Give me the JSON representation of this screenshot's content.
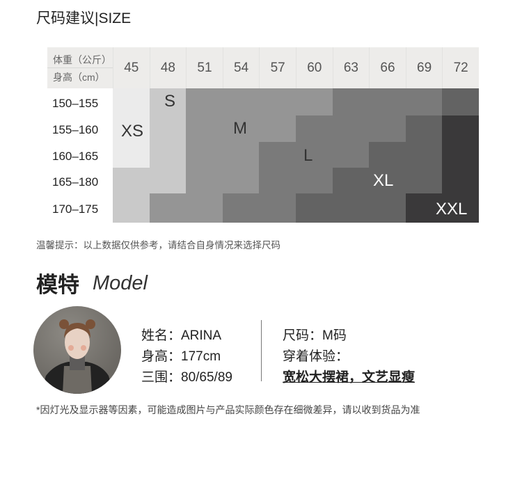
{
  "size_title": "尺码建议|SIZE",
  "table": {
    "header_weight": "体重（公斤）",
    "header_height": "身高（cm）",
    "weights": [
      "45",
      "48",
      "51",
      "54",
      "57",
      "60",
      "63",
      "66",
      "69",
      "72"
    ],
    "heights": [
      "150–155",
      "155–160",
      "160–165",
      "165–180",
      "170–175"
    ],
    "grid": [
      [
        "XS",
        "S",
        "M",
        "M",
        "M",
        "M",
        "L",
        "L",
        "L",
        "XL"
      ],
      [
        "XS",
        "S",
        "M",
        "M",
        "M",
        "L",
        "L",
        "L",
        "XL",
        "XXL"
      ],
      [
        "XS",
        "S",
        "M",
        "M",
        "L",
        "L",
        "L",
        "XL",
        "XL",
        "XXL"
      ],
      [
        "S",
        "S",
        "M",
        "M",
        "L",
        "L",
        "XL",
        "XL",
        "XL",
        "XXL"
      ],
      [
        "S",
        "M",
        "M",
        "L",
        "L",
        "XL",
        "XL",
        "XL",
        "XXL",
        "XXL"
      ]
    ],
    "size_colors": {
      "XS": "#ebebeb",
      "S": "#c9c9c9",
      "M": "#959595",
      "L": "#7a7a7a",
      "XL": "#636363",
      "XXL": "#3a393a"
    },
    "labels": {
      "xs": "XS",
      "s": "S",
      "m": "M",
      "l": "L",
      "xl": "XL",
      "xxl": "XXL"
    }
  },
  "tip": "温馨提示：以上数据仅供参考，请结合自身情况来选择尺码",
  "model": {
    "heading": "模特",
    "heading_en": "Model",
    "name": "姓名：ARINA",
    "height": "身高：177cm",
    "measurements": "三围：80/65/89",
    "size": "尺码：M码",
    "experience_label": "穿着体验：",
    "experience": "宽松大摆裙，文艺显瘦"
  },
  "note": "*因灯光及显示器等因素，可能造成图片与产品实际颜色存在细微差异，请以收到货品为准"
}
